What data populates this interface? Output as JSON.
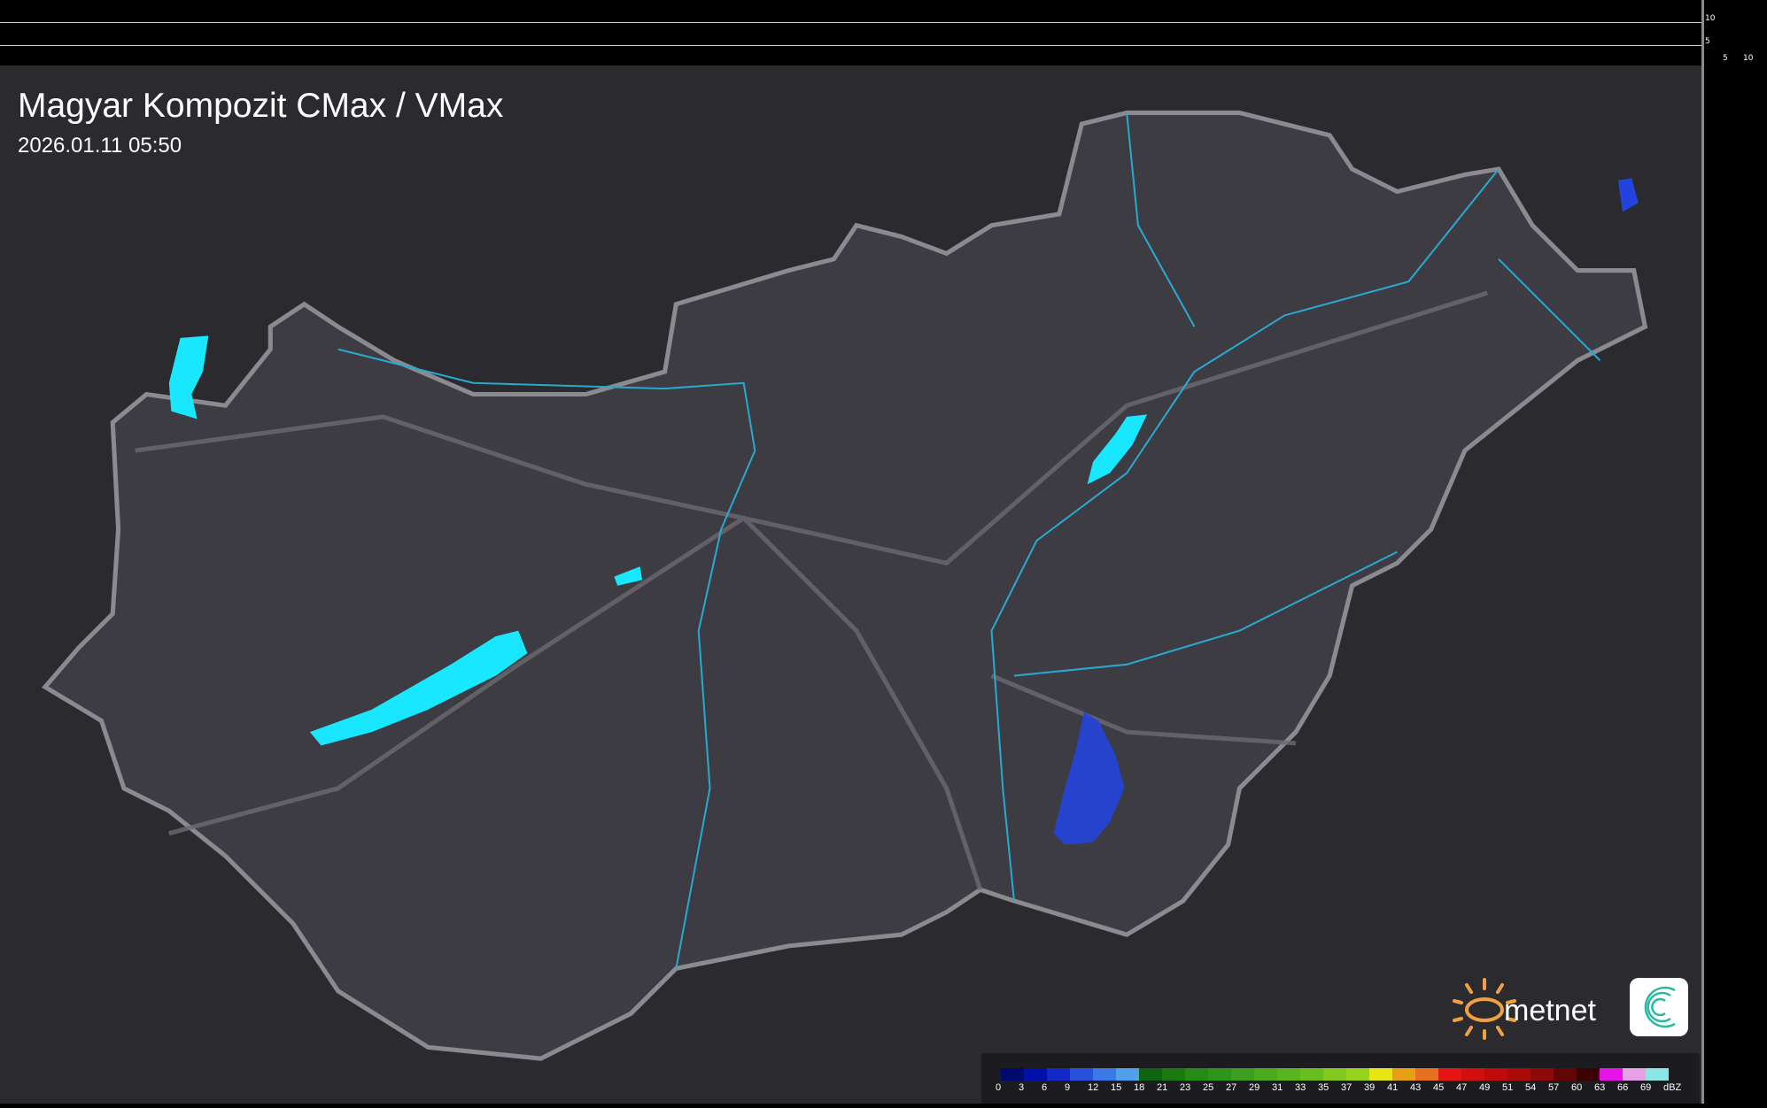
{
  "header": {
    "title": "Magyar Kompozit CMax / VMax",
    "timestamp": "2026.01.11 05:50"
  },
  "scale_marks": {
    "vertical": [
      "10",
      "5"
    ],
    "horizontal": [
      "5",
      "10"
    ]
  },
  "legend": {
    "unit": "dBZ",
    "labels": [
      "0",
      "3",
      "6",
      "9",
      "12",
      "15",
      "18",
      "21",
      "23",
      "25",
      "27",
      "29",
      "31",
      "33",
      "35",
      "37",
      "39",
      "41",
      "43",
      "45",
      "47",
      "49",
      "51",
      "54",
      "57",
      "60",
      "63",
      "66",
      "69"
    ],
    "colors": [
      "#000a6e",
      "#0010a8",
      "#1428c8",
      "#2850dc",
      "#3c78e6",
      "#50a0eb",
      "#0f6414",
      "#1a7a10",
      "#238c14",
      "#2d961a",
      "#3ca01e",
      "#4baa1e",
      "#5ab41e",
      "#69be1e",
      "#82c81e",
      "#96d21e",
      "#e6e614",
      "#e6a014",
      "#e6701e",
      "#e61414",
      "#d20f0f",
      "#be0a0a",
      "#aa0a0a",
      "#8c0a0a",
      "#640505",
      "#3c0202",
      "#e614e6",
      "#e6a0e6",
      "#8ce6e6"
    ]
  },
  "logo": {
    "text": "metnet",
    "sun_color": "#f0a040",
    "swirl_color": "#2ab8a0"
  },
  "colors": {
    "country_fill": "#3c3c42",
    "border": "#8a8a90",
    "water": "#19e6ff",
    "rivers": "#2aa8d0",
    "radar_echo": "#2244dd"
  }
}
